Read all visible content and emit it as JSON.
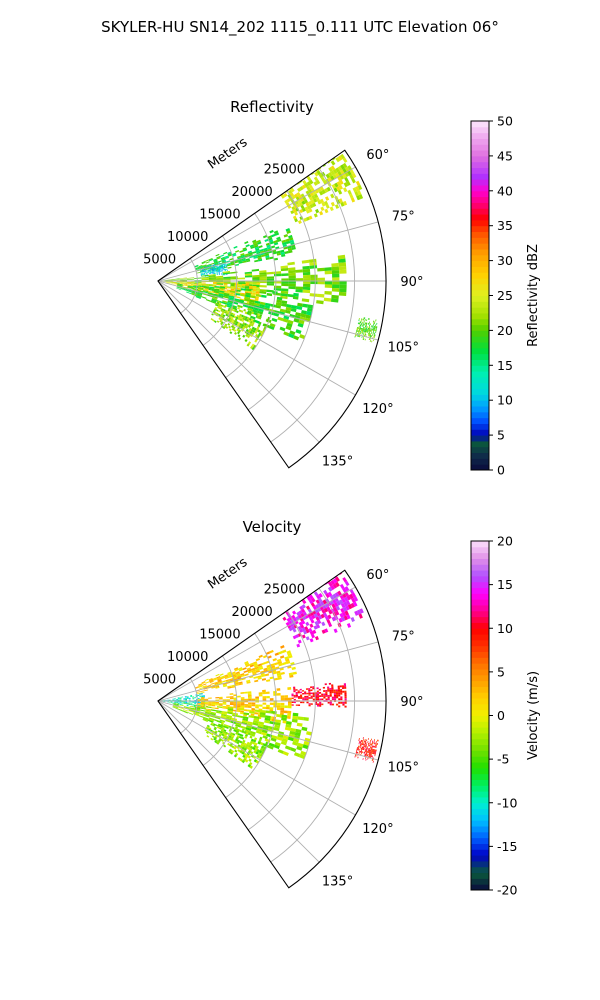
{
  "title": "SKYLER-HU  SN14_202  1115_0.111 UTC Elevation 06°",
  "chart_data": [
    {
      "type": "heatmap",
      "projection": "polar-sector",
      "title": "Reflectivity",
      "range_axis_label": "Meters",
      "range_ticks": [
        "5000",
        "10000",
        "15000",
        "20000",
        "25000"
      ],
      "range_values": [
        5000,
        10000,
        15000,
        20000,
        25000
      ],
      "range_max": 29000,
      "azimuth_ticks": [
        "60°",
        "75°",
        "90°",
        "105°",
        "120°",
        "135°"
      ],
      "azimuth_values": [
        60,
        75,
        90,
        105,
        120,
        135
      ],
      "azimuth_range": [
        55,
        145
      ],
      "colorbar": {
        "label": "Reflectivity dBZ",
        "range": [
          0,
          50
        ],
        "ticks": [
          "0",
          "5",
          "10",
          "15",
          "20",
          "25",
          "30",
          "35",
          "40",
          "45",
          "50"
        ],
        "tick_values": [
          0,
          5,
          10,
          15,
          20,
          25,
          30,
          35,
          40,
          45,
          50
        ]
      },
      "echo_regions": [
        {
          "az": 60,
          "r0": 19000,
          "r1": 28500,
          "aw": 8,
          "value": 24
        },
        {
          "az": 73,
          "r0": 5000,
          "r1": 18000,
          "aw": 7,
          "value": 18
        },
        {
          "az": 79,
          "r0": 5500,
          "r1": 9000,
          "aw": 6,
          "value": 11
        },
        {
          "az": 90,
          "r0": 0,
          "r1": 24000,
          "aw": 8,
          "value": 21
        },
        {
          "az": 98,
          "r0": 1000,
          "r1": 13000,
          "aw": 7,
          "value": 27
        },
        {
          "az": 104,
          "r0": 2500,
          "r1": 20000,
          "aw": 9,
          "value": 19
        },
        {
          "az": 117,
          "r0": 8000,
          "r1": 15000,
          "aw": 9,
          "value": 22
        },
        {
          "az": 103,
          "r0": 26000,
          "r1": 28500,
          "aw": 3,
          "value": 20
        }
      ]
    },
    {
      "type": "heatmap",
      "projection": "polar-sector",
      "title": "Velocity",
      "range_axis_label": "Meters",
      "range_ticks": [
        "5000",
        "10000",
        "15000",
        "20000",
        "25000"
      ],
      "range_values": [
        5000,
        10000,
        15000,
        20000,
        25000
      ],
      "range_max": 29000,
      "azimuth_ticks": [
        "60°",
        "75°",
        "90°",
        "105°",
        "120°",
        "135°"
      ],
      "azimuth_values": [
        60,
        75,
        90,
        105,
        120,
        135
      ],
      "azimuth_range": [
        55,
        145
      ],
      "colorbar": {
        "label": "Velocity (m/s)",
        "range": [
          -20,
          20
        ],
        "ticks": [
          "-20",
          "-15",
          "-10",
          "-5",
          "0",
          "5",
          "10",
          "15",
          "20"
        ],
        "tick_values": [
          -20,
          -15,
          -10,
          -5,
          0,
          5,
          10,
          15,
          20
        ]
      },
      "echo_regions": [
        {
          "az": 61,
          "r0": 19000,
          "r1": 28500,
          "aw": 8,
          "value": 14
        },
        {
          "az": 73,
          "r0": 5000,
          "r1": 18000,
          "aw": 7,
          "value": 2
        },
        {
          "az": 90,
          "r0": 0,
          "r1": 6000,
          "aw": 10,
          "value": -10
        },
        {
          "az": 92,
          "r0": 5000,
          "r1": 17000,
          "aw": 8,
          "value": 2
        },
        {
          "az": 88,
          "r0": 17000,
          "r1": 24000,
          "aw": 4,
          "value": 10
        },
        {
          "az": 104,
          "r0": 2000,
          "r1": 20000,
          "aw": 9,
          "value": -3
        },
        {
          "az": 117,
          "r0": 7000,
          "r1": 15000,
          "aw": 9,
          "value": -3
        },
        {
          "az": 103,
          "r0": 26000,
          "r1": 28500,
          "aw": 3,
          "value": 9
        }
      ]
    }
  ]
}
